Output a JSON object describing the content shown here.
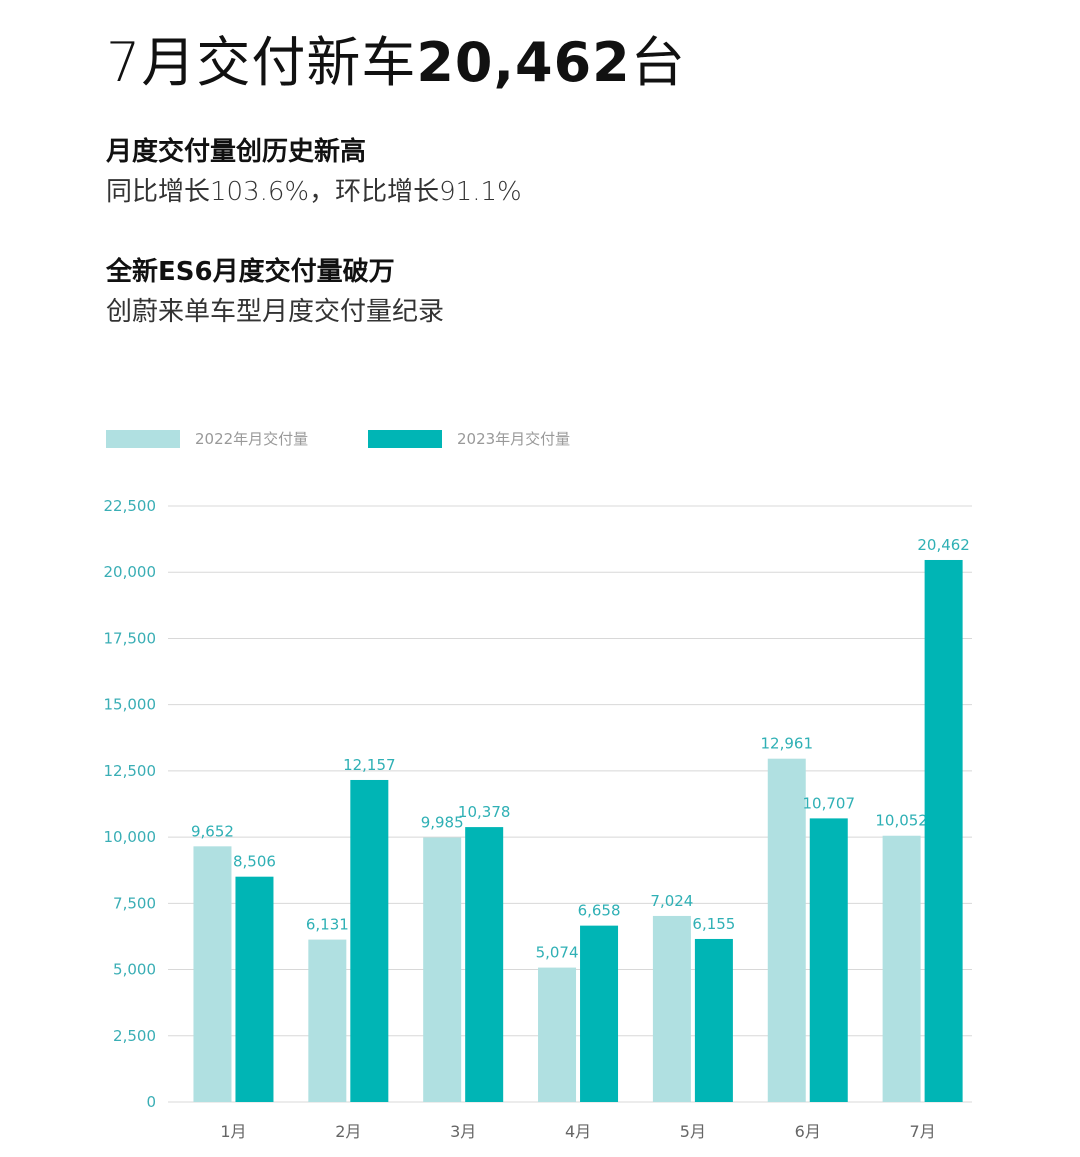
{
  "header": {
    "title_prefix": "7月交付新车",
    "title_number": "20,462",
    "title_suffix": "台"
  },
  "highlights": [
    {
      "heading": "月度交付量创历史新高",
      "sub": "同比增长103.6%，环比增长91.1%"
    },
    {
      "heading": "全新ES6月度交付量破万",
      "sub": "创蔚来单车型月度交付量纪录"
    }
  ],
  "chart_data": {
    "type": "bar",
    "categories": [
      "1月",
      "2月",
      "3月",
      "4月",
      "5月",
      "6月",
      "7月"
    ],
    "series": [
      {
        "name": "2022年月交付量",
        "color": "#b0e0e1",
        "values": [
          9652,
          6131,
          9985,
          5074,
          7024,
          12961,
          10052
        ],
        "labels": [
          "9,652",
          "6,131",
          "9,985",
          "5,074",
          "7,024",
          "12,961",
          "10,052"
        ]
      },
      {
        "name": "2023年月交付量",
        "color": "#00b5b5",
        "values": [
          8506,
          12157,
          10378,
          6658,
          6155,
          10707,
          20462
        ],
        "labels": [
          "8,506",
          "12,157",
          "10,378",
          "6,658",
          "6,155",
          "10,707",
          "20,462"
        ]
      }
    ],
    "ylim": [
      0,
      22500
    ],
    "yticks": [
      "0",
      "2,500",
      "5,000",
      "7,500",
      "10,000",
      "12,500",
      "15,000",
      "17,500",
      "20,000",
      "22,500"
    ],
    "grid": true,
    "legend": "top-left"
  }
}
